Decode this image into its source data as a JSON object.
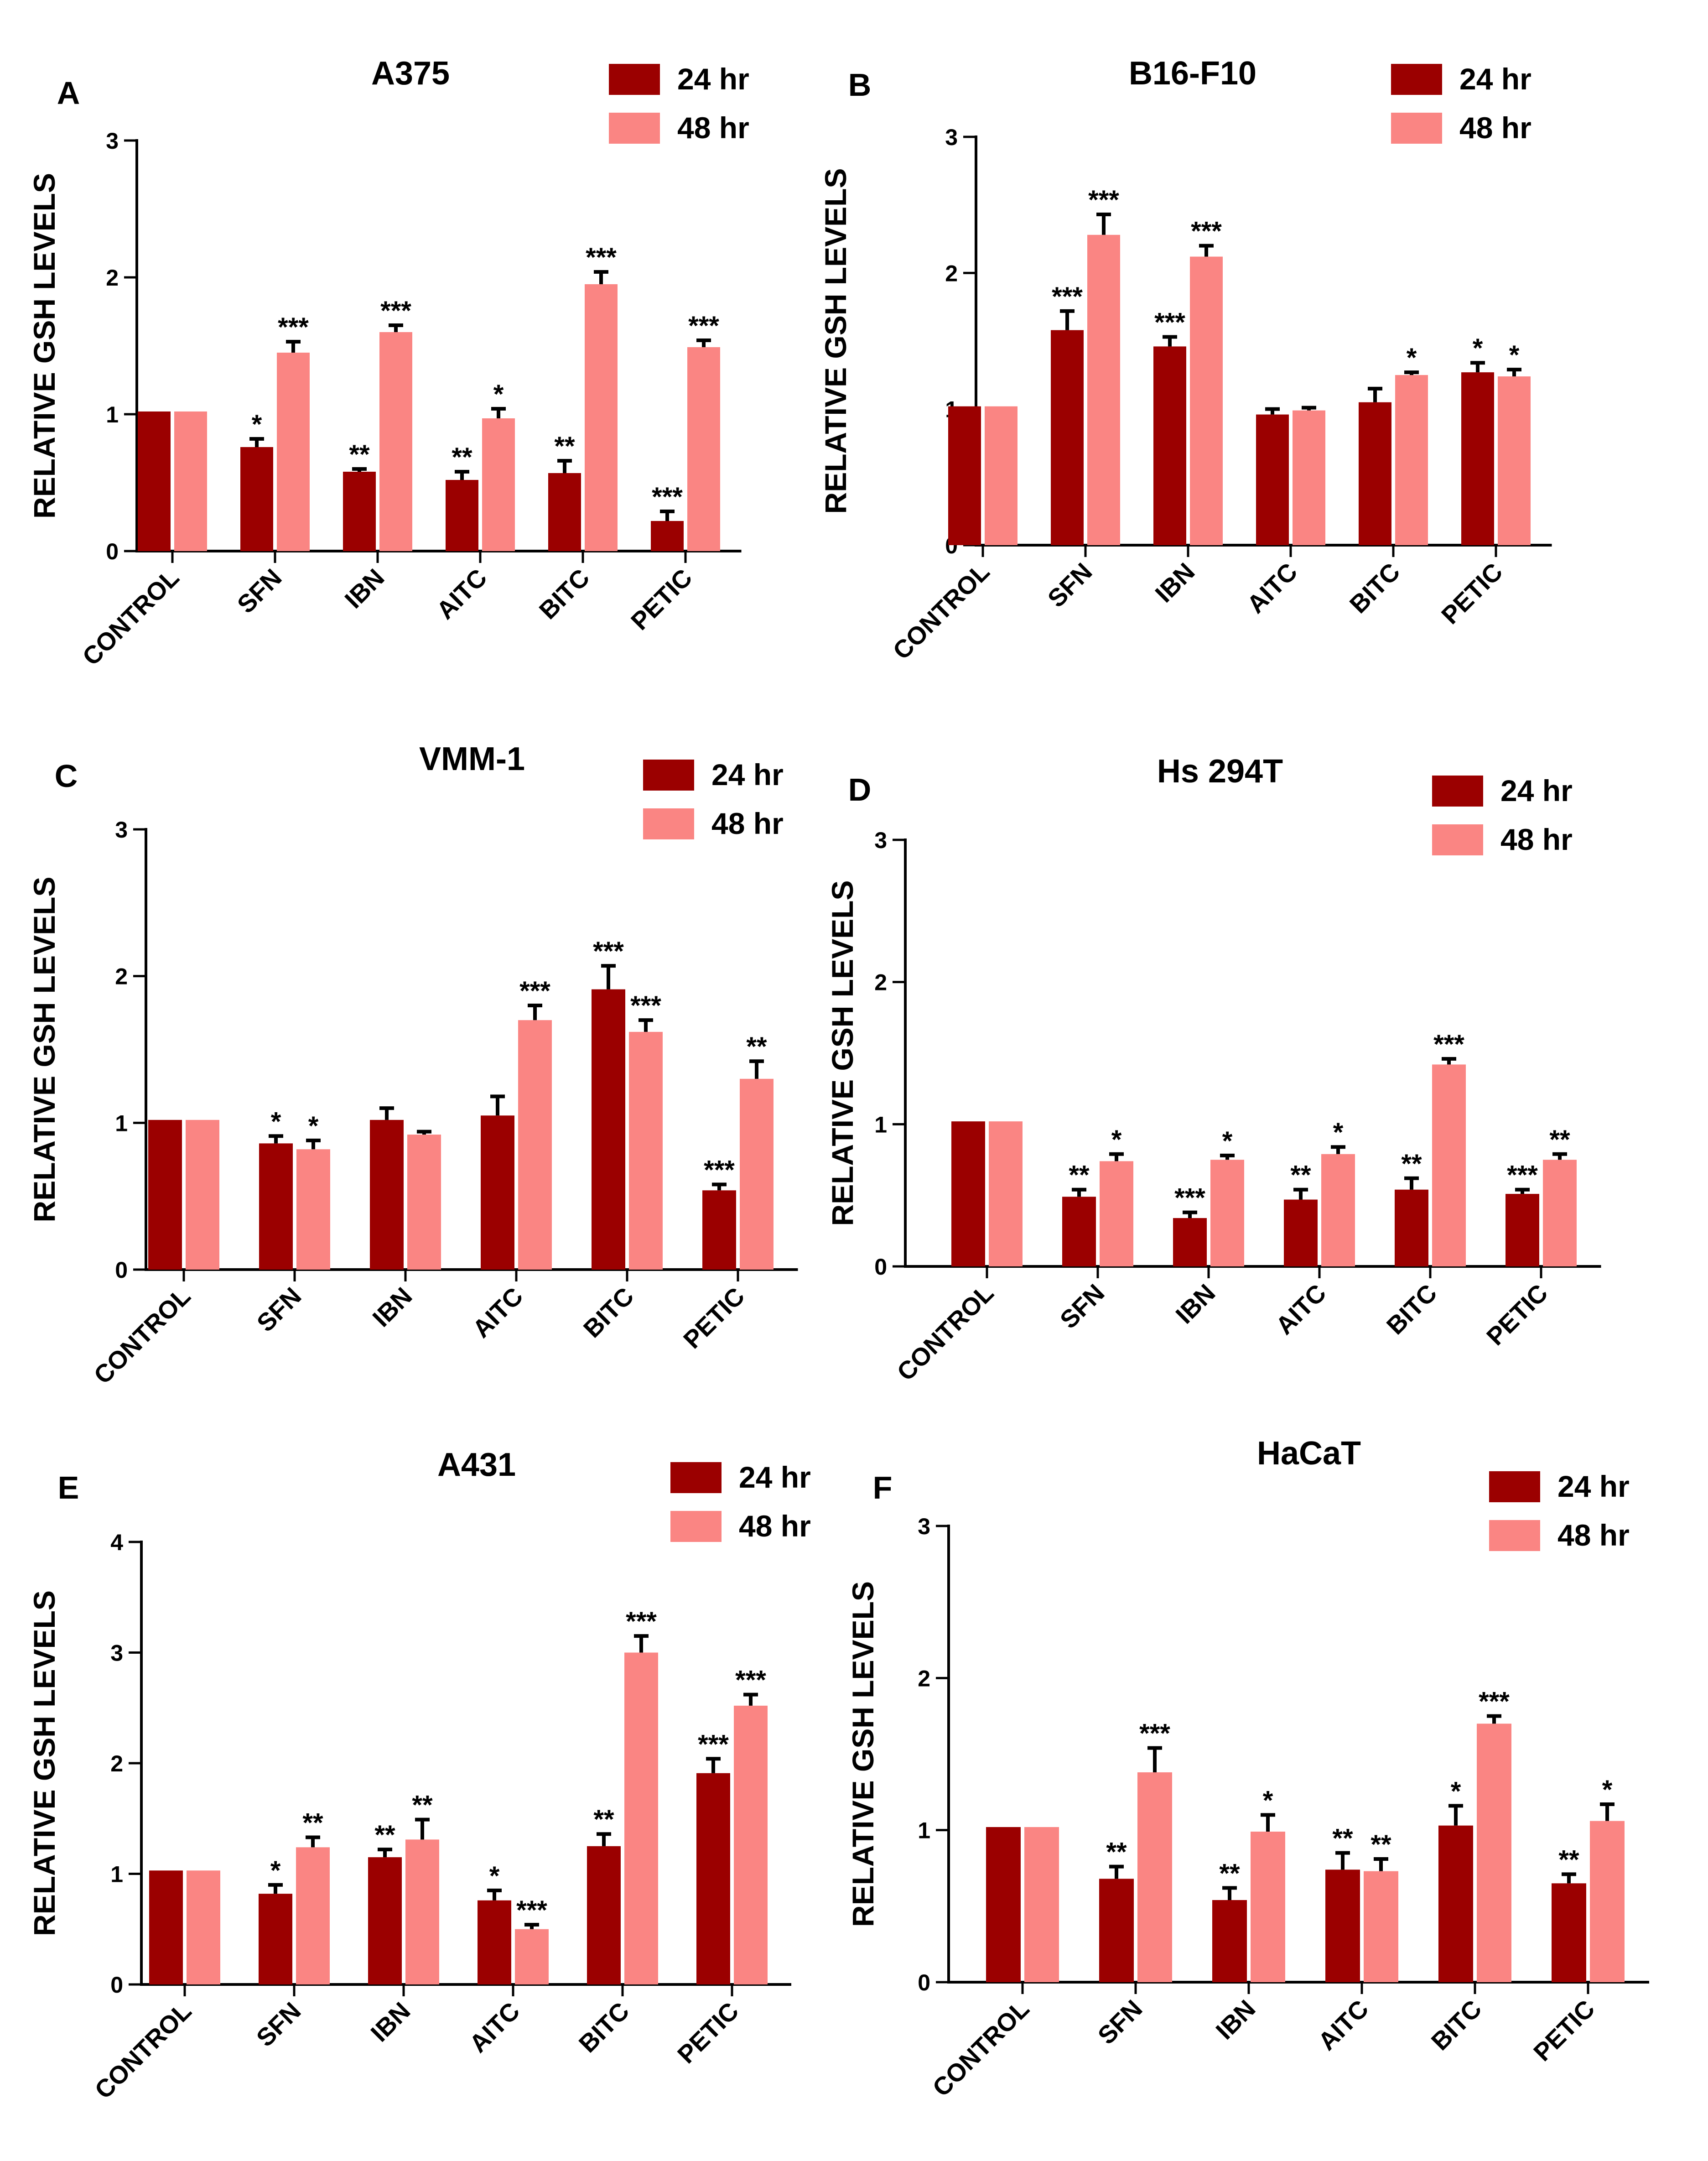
{
  "colors": {
    "series_24hr": "#9b0000",
    "series_48hr": "#fa8583",
    "axis": "#000000"
  },
  "chart_data": [
    {
      "panel": "A",
      "type": "bar",
      "title": "A375",
      "ylabel": "RELATIVE GSH LEVELS",
      "ylim": [
        0,
        3
      ],
      "yticks": [
        0,
        1,
        2,
        3
      ],
      "categories": [
        "CONTROL",
        "SFN",
        "IBN",
        "AITC",
        "BITC",
        "PETIC"
      ],
      "series": [
        {
          "name": "24 hr",
          "values": [
            1.02,
            0.76,
            0.58,
            0.52,
            0.57,
            0.22
          ],
          "errors": [
            0,
            0.06,
            0.02,
            0.06,
            0.09,
            0.07
          ],
          "annotations": [
            "",
            "*",
            "**",
            "**",
            "**",
            "***"
          ]
        },
        {
          "name": "48 hr",
          "values": [
            1.02,
            1.45,
            1.6,
            0.97,
            1.95,
            1.49
          ],
          "errors": [
            0,
            0.08,
            0.05,
            0.07,
            0.09,
            0.05
          ],
          "annotations": [
            "",
            "***",
            "***",
            "*",
            "***",
            "***"
          ]
        }
      ]
    },
    {
      "panel": "B",
      "type": "bar",
      "title": "B16-F10",
      "ylabel": "RELATIVE GSH LEVELS",
      "ylim": [
        0,
        3
      ],
      "yticks": [
        0,
        1,
        2,
        3
      ],
      "categories": [
        "CONTROL",
        "SFN",
        "IBN",
        "AITC",
        "BITC",
        "PETIC"
      ],
      "series": [
        {
          "name": "24 hr",
          "values": [
            1.02,
            1.58,
            1.46,
            0.96,
            1.05,
            1.27
          ],
          "errors": [
            0,
            0.14,
            0.07,
            0.04,
            0.1,
            0.07
          ],
          "annotations": [
            "",
            "***",
            "***",
            "",
            "",
            "*"
          ]
        },
        {
          "name": "48 hr",
          "values": [
            1.02,
            2.28,
            2.12,
            0.99,
            1.25,
            1.24
          ],
          "errors": [
            0,
            0.15,
            0.08,
            0.02,
            0.02,
            0.05
          ],
          "annotations": [
            "",
            "***",
            "***",
            "",
            "*",
            "*"
          ]
        }
      ]
    },
    {
      "panel": "C",
      "type": "bar",
      "title": "VMM-1",
      "ylabel": "RELATIVE GSH LEVELS",
      "ylim": [
        0,
        3
      ],
      "yticks": [
        0,
        1,
        2,
        3
      ],
      "categories": [
        "CONTROL",
        "SFN",
        "IBN",
        "AITC",
        "BITC",
        "PETIC"
      ],
      "series": [
        {
          "name": "24 hr",
          "values": [
            1.02,
            0.86,
            1.02,
            1.05,
            1.91,
            0.54
          ],
          "errors": [
            0,
            0.05,
            0.08,
            0.13,
            0.16,
            0.04
          ],
          "annotations": [
            "",
            "*",
            "",
            "",
            "***",
            "***"
          ]
        },
        {
          "name": "48 hr",
          "values": [
            1.02,
            0.82,
            0.92,
            1.7,
            1.62,
            1.3
          ],
          "errors": [
            0,
            0.06,
            0.02,
            0.1,
            0.08,
            0.12
          ],
          "annotations": [
            "",
            "*",
            "",
            "***",
            "***",
            "**"
          ]
        }
      ]
    },
    {
      "panel": "D",
      "type": "bar",
      "title": "Hs 294T",
      "ylabel": "RELATIVE GSH LEVELS",
      "ylim": [
        0,
        3
      ],
      "yticks": [
        0,
        1,
        2,
        3
      ],
      "categories": [
        "CONTROL",
        "SFN",
        "IBN",
        "AITC",
        "BITC",
        "PETIC"
      ],
      "series": [
        {
          "name": "24 hr",
          "values": [
            1.02,
            0.49,
            0.34,
            0.47,
            0.54,
            0.51
          ],
          "errors": [
            0,
            0.05,
            0.04,
            0.07,
            0.08,
            0.03
          ],
          "annotations": [
            "",
            "**",
            "***",
            "**",
            "**",
            "***"
          ]
        },
        {
          "name": "48 hr",
          "values": [
            1.02,
            0.74,
            0.75,
            0.79,
            1.42,
            0.75
          ],
          "errors": [
            0,
            0.05,
            0.03,
            0.05,
            0.04,
            0.04
          ],
          "annotations": [
            "",
            "*",
            "*",
            "*",
            "***",
            "**"
          ]
        }
      ]
    },
    {
      "panel": "E",
      "type": "bar",
      "title": "A431",
      "ylabel": "RELATIVE GSH LEVELS",
      "ylim": [
        0,
        4
      ],
      "yticks": [
        0,
        1,
        2,
        3,
        4
      ],
      "categories": [
        "CONTROL",
        "SFN",
        "IBN",
        "AITC",
        "BITC",
        "PETIC"
      ],
      "series": [
        {
          "name": "24 hr",
          "values": [
            1.03,
            0.82,
            1.15,
            0.76,
            1.25,
            1.91
          ],
          "errors": [
            0,
            0.08,
            0.07,
            0.09,
            0.11,
            0.13
          ],
          "annotations": [
            "",
            "*",
            "**",
            "*",
            "**",
            "***"
          ]
        },
        {
          "name": "48 hr",
          "values": [
            1.03,
            1.24,
            1.31,
            0.5,
            3.0,
            2.52
          ],
          "errors": [
            0,
            0.09,
            0.18,
            0.04,
            0.15,
            0.1
          ],
          "annotations": [
            "",
            "**",
            "**",
            "***",
            "***",
            "***"
          ]
        }
      ]
    },
    {
      "panel": "F",
      "type": "bar",
      "title": "HaCaT",
      "ylabel": "RELATIVE GSH LEVELS",
      "ylim": [
        0,
        3
      ],
      "yticks": [
        0,
        1,
        2,
        3
      ],
      "categories": [
        "CONTROL",
        "SFN",
        "IBN",
        "AITC",
        "BITC",
        "PETIC"
      ],
      "series": [
        {
          "name": "24 hr",
          "values": [
            1.02,
            0.68,
            0.54,
            0.74,
            1.03,
            0.65
          ],
          "errors": [
            0,
            0.08,
            0.08,
            0.11,
            0.13,
            0.06
          ],
          "annotations": [
            "",
            "**",
            "**",
            "**",
            "*",
            "**"
          ]
        },
        {
          "name": "48 hr",
          "values": [
            1.02,
            1.38,
            0.99,
            0.73,
            1.7,
            1.06
          ],
          "errors": [
            0,
            0.16,
            0.11,
            0.08,
            0.05,
            0.11
          ],
          "annotations": [
            "",
            "***",
            "*",
            "**",
            "***",
            "*"
          ]
        }
      ]
    }
  ]
}
